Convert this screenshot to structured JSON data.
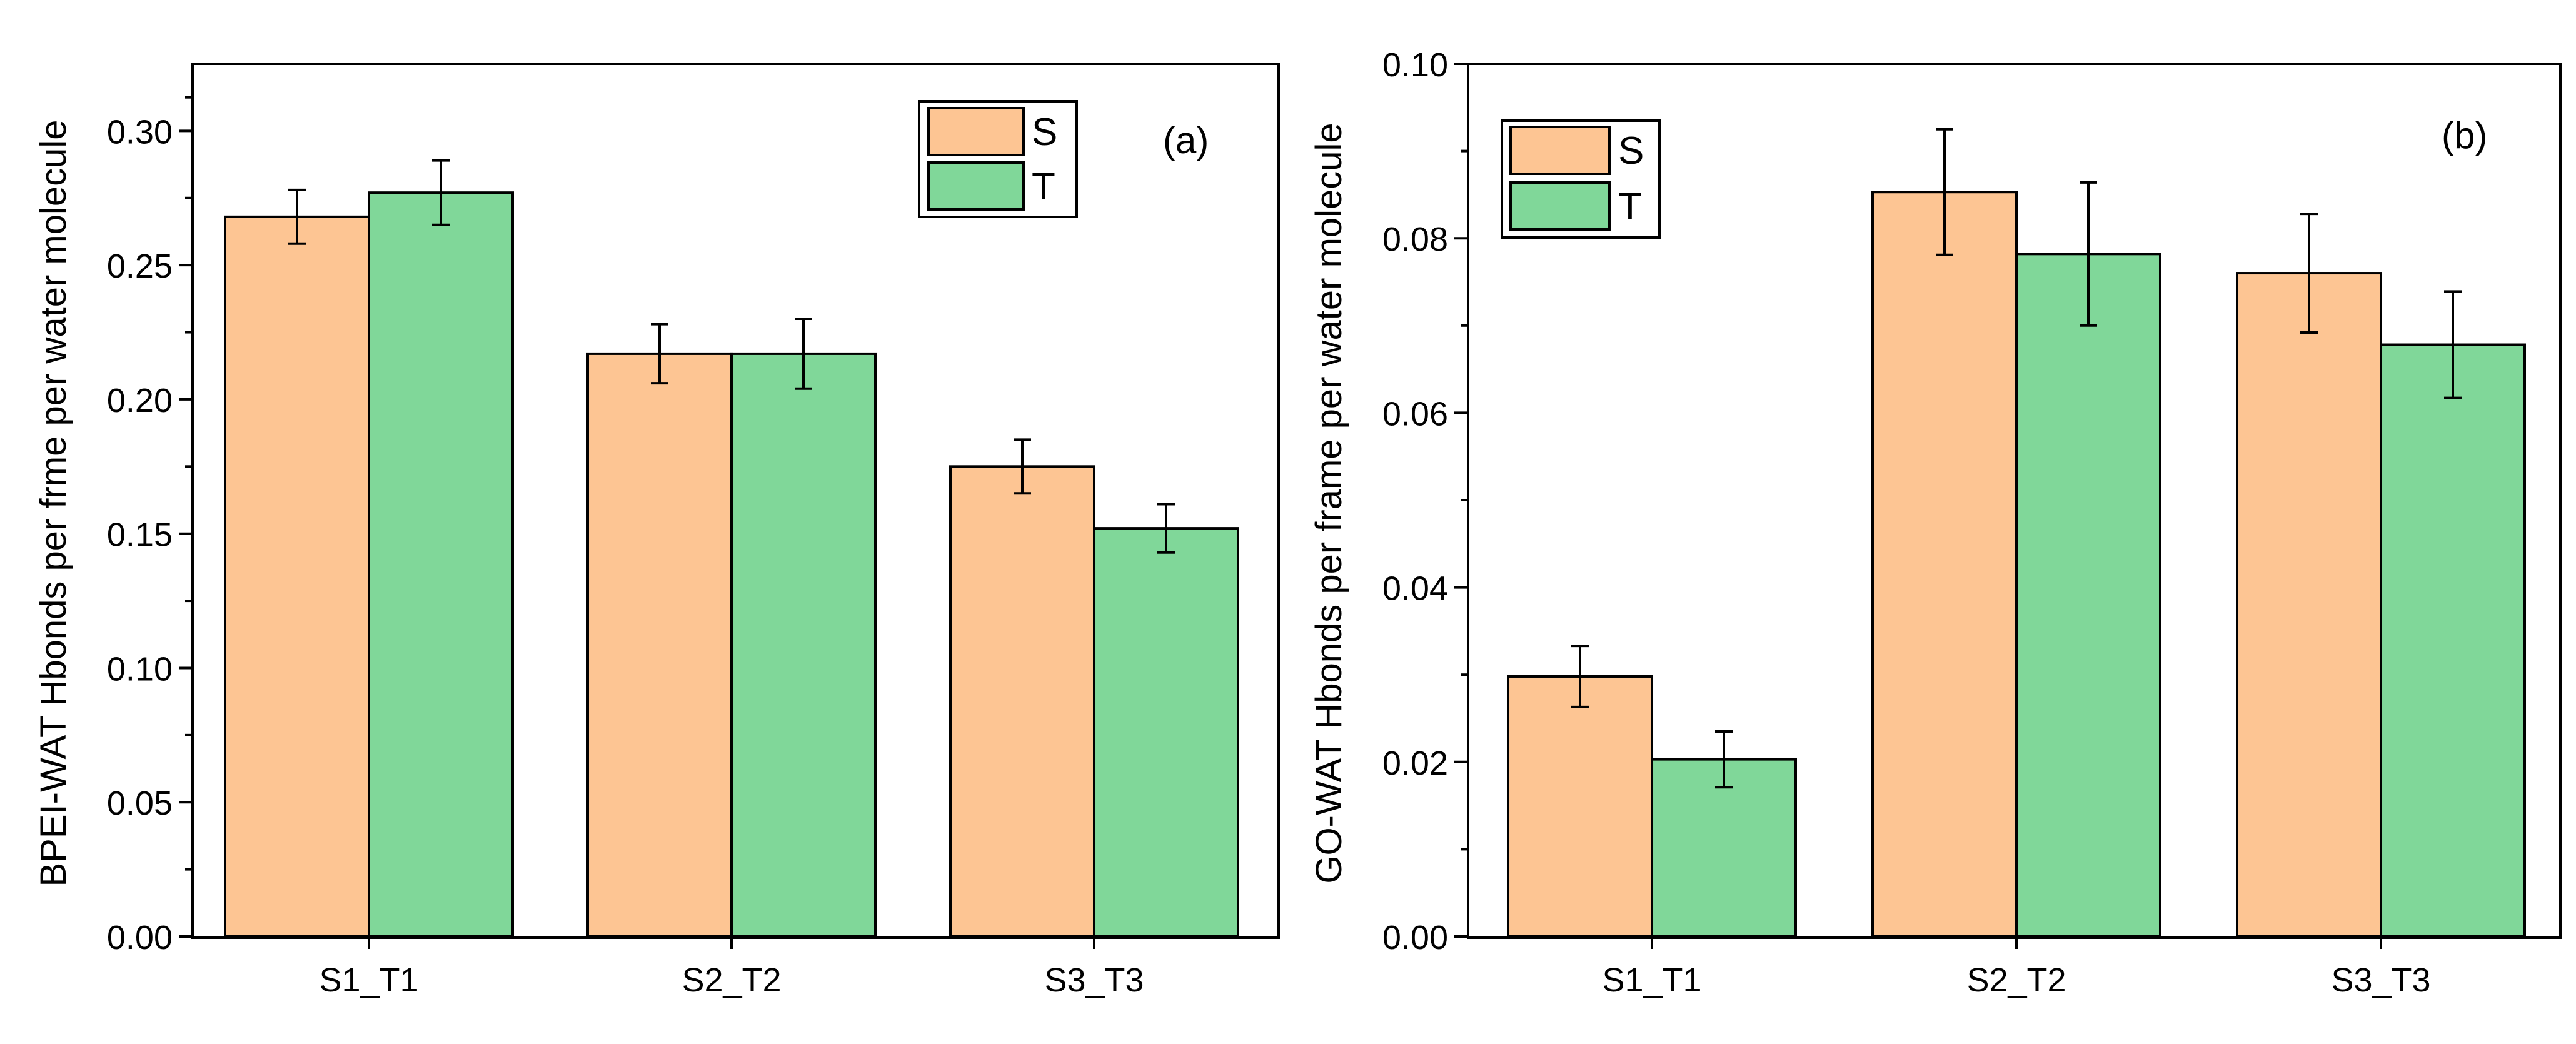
{
  "colors": {
    "S": "#fdc593",
    "T": "#80d799",
    "axis": "#000000"
  },
  "chart_data": [
    {
      "type": "bar",
      "panel_label": "(a)",
      "categories": [
        "S1_T1",
        "S2_T2",
        "S3_T3"
      ],
      "series": [
        {
          "name": "S",
          "values": [
            0.268,
            0.217,
            0.175
          ],
          "errors": [
            0.01,
            0.011,
            0.01
          ]
        },
        {
          "name": "T",
          "values": [
            0.277,
            0.217,
            0.152
          ],
          "errors": [
            0.012,
            0.013,
            0.009
          ]
        }
      ],
      "ylabel": "BPEI-WAT Hbonds per frme per water molecule",
      "xlabel": "",
      "ylim": [
        0,
        0.325
      ],
      "yticks": [
        0.0,
        0.05,
        0.1,
        0.15,
        0.2,
        0.25,
        0.3
      ],
      "ytick_labels": [
        "0.00",
        "0.05",
        "0.10",
        "0.15",
        "0.20",
        "0.25",
        "0.30"
      ],
      "legend_position": "top-center"
    },
    {
      "type": "bar",
      "panel_label": "(b)",
      "categories": [
        "S1_T1",
        "S2_T2",
        "S3_T3"
      ],
      "series": [
        {
          "name": "S",
          "values": [
            0.0298,
            0.0853,
            0.076
          ],
          "errors": [
            0.0035,
            0.0072,
            0.0068
          ]
        },
        {
          "name": "T",
          "values": [
            0.0203,
            0.0782,
            0.0678
          ],
          "errors": [
            0.0032,
            0.0082,
            0.0061
          ]
        }
      ],
      "ylabel": "GO-WAT Hbonds per frame per water molecule",
      "xlabel": "",
      "ylim": [
        0,
        0.1
      ],
      "yticks": [
        0.0,
        0.02,
        0.04,
        0.06,
        0.08,
        0.1
      ],
      "ytick_labels": [
        "0.00",
        "0.02",
        "0.04",
        "0.06",
        "0.08",
        "0.10"
      ],
      "legend_position": "top-left"
    }
  ]
}
